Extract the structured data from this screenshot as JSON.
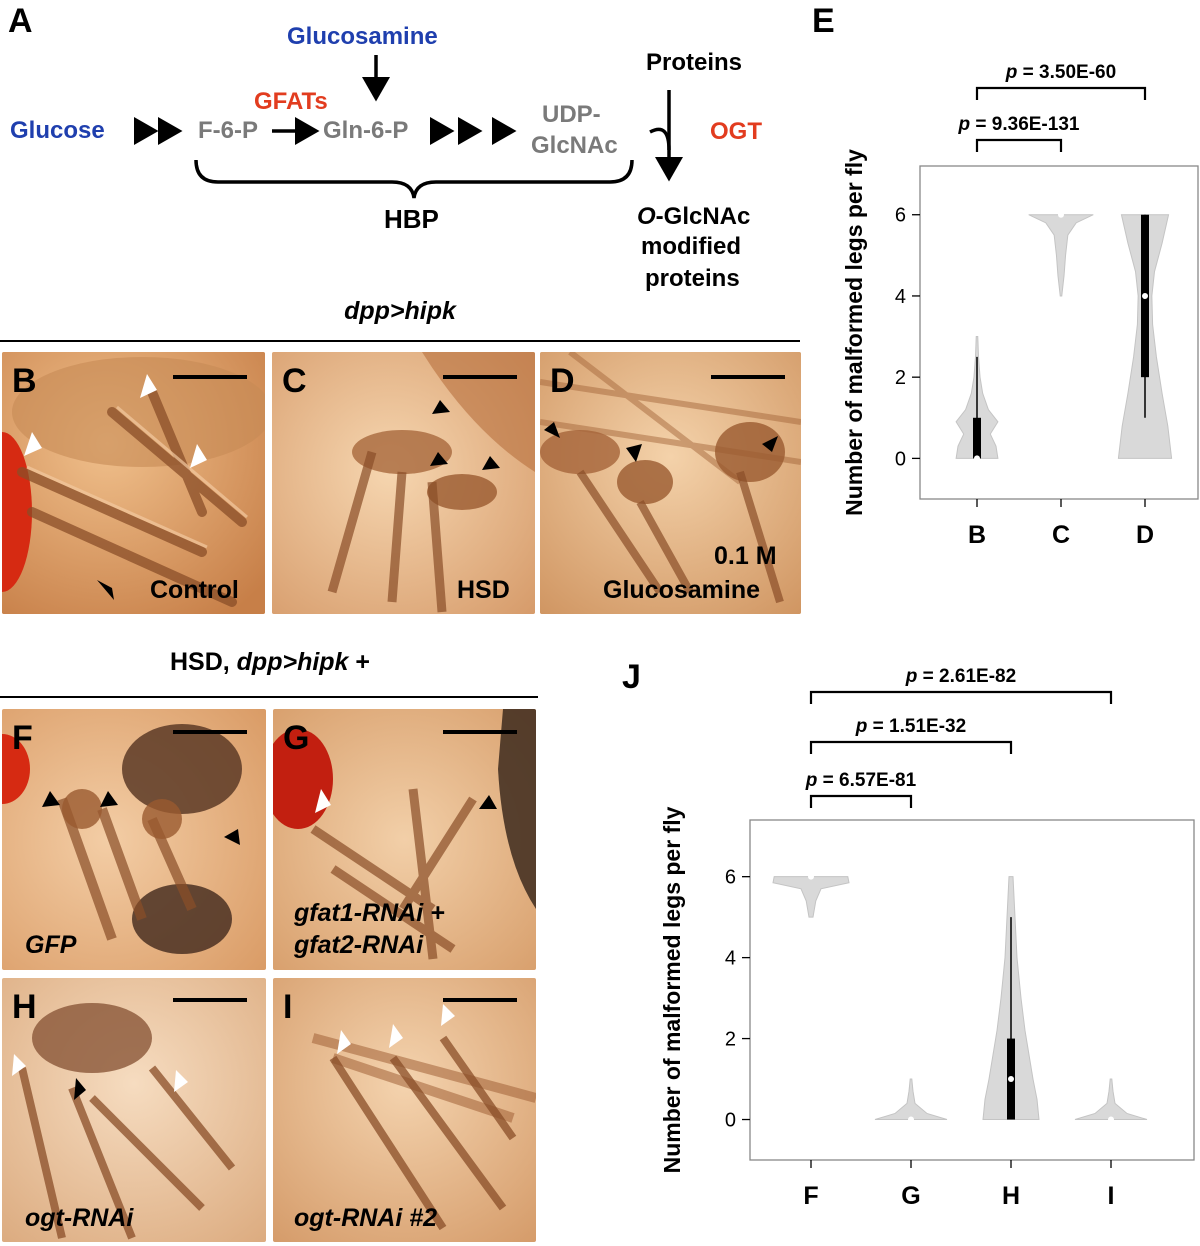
{
  "colors": {
    "blue": "#1f3fae",
    "red": "#e23c1f",
    "gray": "#7a7a7a",
    "violin": "#d9d9d9",
    "violin_stroke": "#c4c4c4",
    "photo_base": "#e0a673"
  },
  "panel_a": {
    "label": "A",
    "glucose": "Glucose",
    "glucosamine": "Glucosamine",
    "gfats": "GFATs",
    "f6p": "F-6-P",
    "gln6p": "Gln-6-P",
    "udp1": "UDP-",
    "udp2": "GlcNAc",
    "hbp": "HBP",
    "proteins": "Proteins",
    "ogt": "OGT",
    "out1_italic": "O",
    "out1_rest": "-GlcNAc",
    "out2": "modified",
    "out3": "proteins"
  },
  "row1_header": "dpp>hipk",
  "row2_header_plain": "HSD, ",
  "row2_header_italic": "dpp>hipk",
  "row2_header_tail": " +",
  "photos": {
    "B": {
      "label": "B",
      "caption": "Control"
    },
    "C": {
      "label": "C",
      "caption": "HSD"
    },
    "D": {
      "label": "D",
      "caption1": "0.1 M",
      "caption2": "Glucosamine"
    },
    "F": {
      "label": "F",
      "caption": "GFP"
    },
    "G": {
      "label": "G",
      "caption1": "gfat1-RNAi +",
      "caption2": "gfat2-RNAi"
    },
    "H": {
      "label": "H",
      "caption": "ogt-RNAi"
    },
    "I": {
      "label": "I",
      "caption": "ogt-RNAi #2"
    }
  },
  "chart_data": [
    {
      "panel": "E",
      "type": "violin",
      "ylabel": "Number of malformed legs per fly",
      "categories": [
        "B",
        "C",
        "D"
      ],
      "ylim": [
        -1,
        7.2
      ],
      "yticks": [
        0,
        2,
        4,
        6
      ],
      "medians": [
        0,
        6,
        4
      ],
      "iqr": [
        [
          0,
          1
        ],
        [
          6,
          6
        ],
        [
          2,
          6
        ]
      ],
      "whiskers": [
        [
          0,
          2.5
        ],
        [
          6,
          6
        ],
        [
          1,
          6
        ]
      ],
      "comparisons": [
        {
          "from": "B",
          "to": "C",
          "label": "p = 9.36E-131"
        },
        {
          "from": "B",
          "to": "D",
          "label": "p = 3.50E-60"
        }
      ]
    },
    {
      "panel": "J",
      "type": "violin",
      "ylabel": "Number of malformed legs per fly",
      "categories": [
        "F",
        "G",
        "H",
        "I"
      ],
      "ylim": [
        -1,
        7.4
      ],
      "yticks": [
        0,
        2,
        4,
        6
      ],
      "medians": [
        6,
        0,
        1,
        0
      ],
      "iqr": [
        [
          6,
          6
        ],
        [
          0,
          0
        ],
        [
          0,
          2
        ],
        [
          0,
          0
        ]
      ],
      "whiskers": [
        [
          6,
          6
        ],
        [
          0,
          0
        ],
        [
          0,
          5
        ],
        [
          0,
          0
        ]
      ],
      "comparisons": [
        {
          "from": "F",
          "to": "G",
          "label": "p = 6.57E-81"
        },
        {
          "from": "F",
          "to": "H",
          "label": "p = 1.51E-32"
        },
        {
          "from": "F",
          "to": "I",
          "label": "p = 2.61E-82"
        }
      ]
    }
  ]
}
